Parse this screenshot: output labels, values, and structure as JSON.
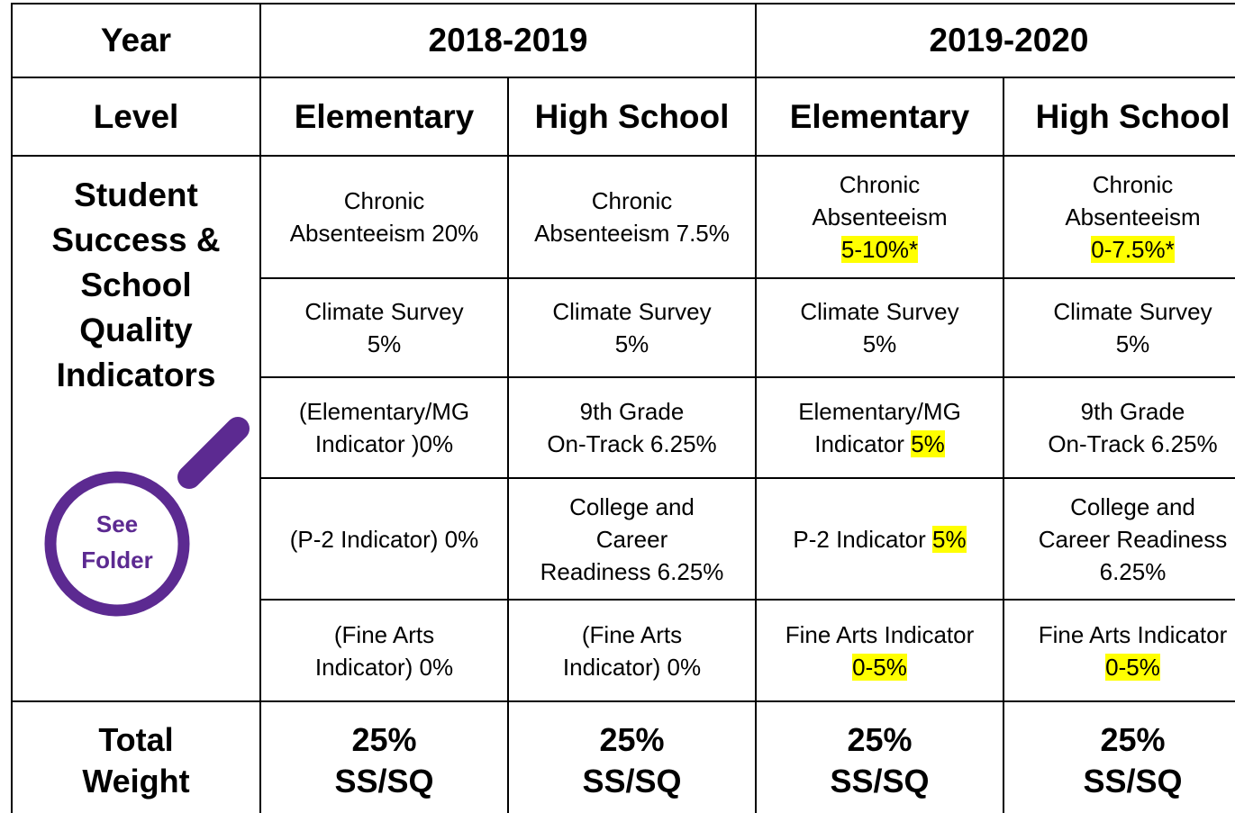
{
  "table": {
    "year_label": "Year",
    "years": [
      "2018-2019",
      "2019-2020"
    ],
    "level_label": "Level",
    "levels": [
      "Elementary",
      "High School",
      "Elementary",
      "High School"
    ],
    "row_group_label": [
      "Student",
      "Success &",
      "School",
      "Quality",
      "Indicators"
    ],
    "badge": [
      "See",
      "Folder"
    ],
    "rows": [
      [
        {
          "lines": [
            "Chronic",
            "Absenteeism 20%"
          ]
        },
        {
          "lines": [
            "Chronic",
            "Absenteeism 7.5%"
          ]
        },
        {
          "lines": [
            "Chronic",
            "Absenteeism"
          ],
          "highlight": "5-10%*"
        },
        {
          "lines": [
            "Chronic",
            "Absenteeism"
          ],
          "highlight": "0-7.5%*"
        }
      ],
      [
        {
          "lines": [
            "Climate Survey",
            "5%"
          ]
        },
        {
          "lines": [
            "Climate Survey",
            "5%"
          ]
        },
        {
          "lines": [
            "Climate Survey",
            "5%"
          ]
        },
        {
          "lines": [
            "Climate Survey",
            "5%"
          ]
        }
      ],
      [
        {
          "lines": [
            "(Elementary/MG",
            "Indicator )0%"
          ]
        },
        {
          "lines": [
            "9th Grade",
            "On-Track 6.25%"
          ]
        },
        {
          "lines": [
            "Elementary/MG",
            "Indicator "
          ],
          "highlight": "5%",
          "inline": true
        },
        {
          "lines": [
            "9th Grade",
            "On-Track 6.25%"
          ]
        }
      ],
      [
        {
          "lines": [
            "(P-2 Indicator) 0%"
          ]
        },
        {
          "lines": [
            "College and",
            "Career",
            "Readiness 6.25%"
          ]
        },
        {
          "lines": [
            "P-2 Indicator "
          ],
          "highlight": "5%",
          "inline": true
        },
        {
          "lines": [
            "College and",
            "Career Readiness",
            "6.25%"
          ]
        }
      ],
      [
        {
          "lines": [
            "(Fine Arts",
            "Indicator) 0%"
          ]
        },
        {
          "lines": [
            "(Fine Arts",
            "Indicator) 0%"
          ]
        },
        {
          "lines": [
            "Fine Arts Indicator"
          ],
          "highlight": "0-5%"
        },
        {
          "lines": [
            "Fine Arts Indicator"
          ],
          "highlight": "0-5%"
        }
      ]
    ],
    "total_label": [
      "Total",
      "Weight"
    ],
    "totals": [
      [
        "25%",
        "SS/SQ"
      ],
      [
        "25%",
        "SS/SQ"
      ],
      [
        "25%",
        "SS/SQ"
      ],
      [
        "25%",
        "SS/SQ"
      ]
    ]
  }
}
